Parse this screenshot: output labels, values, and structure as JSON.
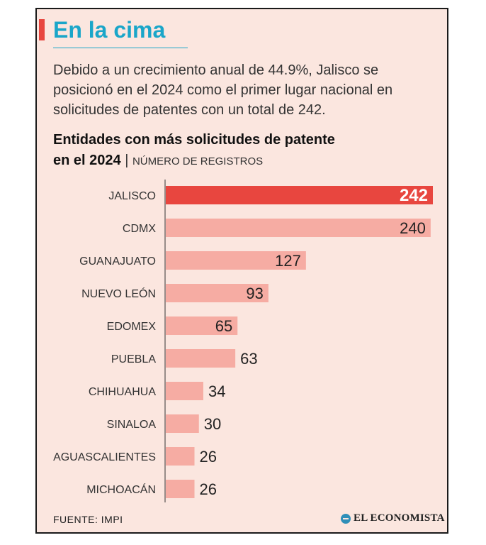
{
  "header": {
    "title": "En la cima",
    "intro": "Debido a un crecimiento anual de 44.9%, Jalisco se posicionó en el 2024 como el primer lugar nacional en solicitudes de patentes con un total de 242."
  },
  "chart_data": {
    "type": "bar",
    "orientation": "horizontal",
    "title": "Entidades con más solicitudes de patente en el 2024",
    "title_line1": "Entidades con más solicitudes de patente",
    "title_line2": "en el 2024",
    "unit": "NÚMERO DE REGISTROS",
    "categories": [
      "JALISCO",
      "CDMX",
      "GUANAJUATO",
      "NUEVO LEÓN",
      "EDOMEX",
      "PUEBLA",
      "CHIHUAHUA",
      "SINALOA",
      "AGUASCALIENTES",
      "MICHOACÁN"
    ],
    "values": [
      242,
      240,
      127,
      93,
      65,
      63,
      34,
      30,
      26,
      26
    ],
    "highlight_index": 0,
    "xlim": [
      0,
      242
    ],
    "colors": {
      "highlight": "#e8463f",
      "default": "#f6aca3",
      "highlight_label": "#ffffff",
      "label": "#222222"
    }
  },
  "footer": {
    "source": "FUENTE: IMPI",
    "brand": "EL ECONOMISTA"
  },
  "colors": {
    "background": "#fbe6df",
    "accent": "#e8463f",
    "headline": "#1aa6c9",
    "brand_icon": "#2f8fb8"
  }
}
